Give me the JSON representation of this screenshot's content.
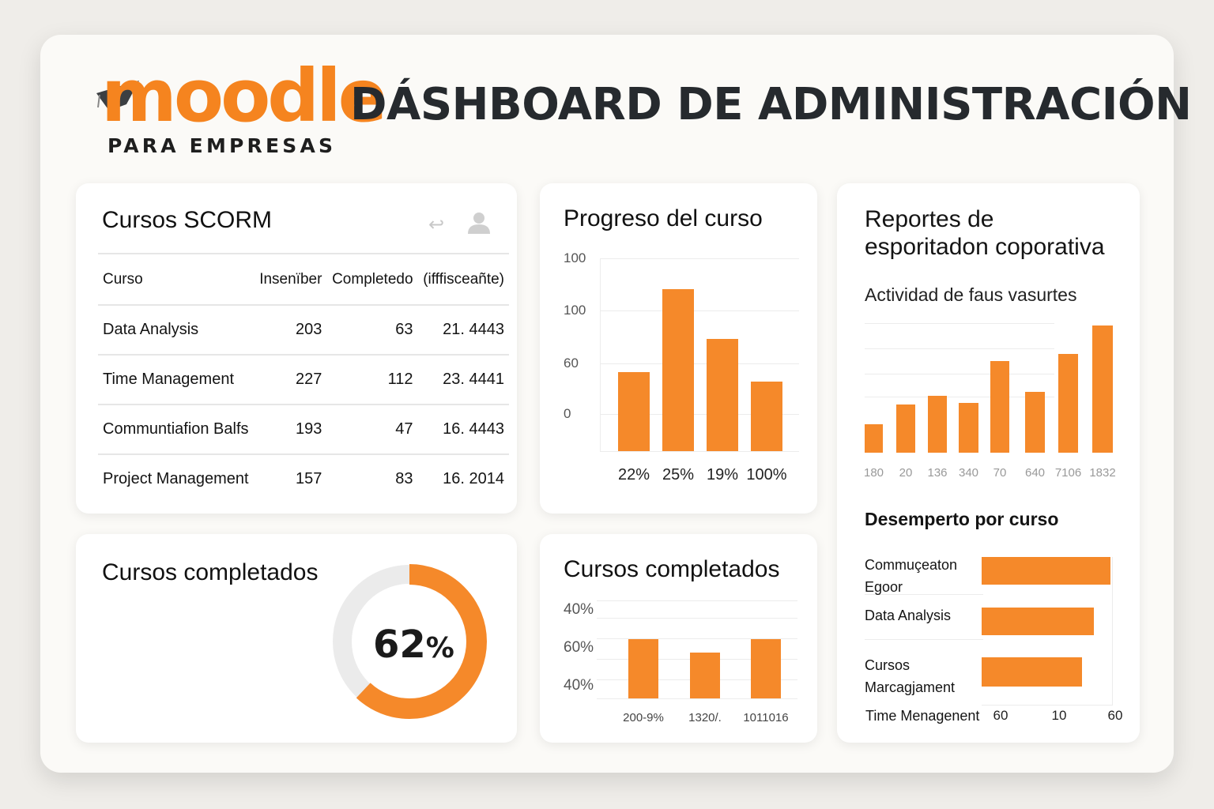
{
  "header": {
    "logo_text": "moodle",
    "logo_subtitle": "PARA EMPRESAS",
    "title": "DÁSHBOARD DE ADMINISTRACIÓN"
  },
  "colors": {
    "accent": "#f5892a",
    "track": "#ebebeb",
    "text": "#141414"
  },
  "scorm": {
    "title": "Cursos SCORM",
    "icons": [
      "back-arrow-icon",
      "user-icon"
    ],
    "columns": [
      "Curso",
      "Insenïber",
      "Completedo",
      "(ifffisceañte)"
    ],
    "rows": [
      [
        "Data Analysis",
        "203",
        "63",
        "21. 4443"
      ],
      [
        "Time Management",
        "227",
        "112",
        "23. 4441"
      ],
      [
        "Communtiafion Balfs",
        "193",
        "47",
        "16. 4443"
      ],
      [
        "Project Management",
        "157",
        "83",
        "16. 2014"
      ]
    ]
  },
  "completion": {
    "title": "Cursos completados",
    "percent": 62,
    "number": "62",
    "unit": "%"
  },
  "chart_data": [
    {
      "type": "bar",
      "title": "Progreso del curso",
      "yticks": [
        "100",
        "100",
        "60",
        "0"
      ],
      "categories": [
        "22%",
        "25%",
        "19%",
        "100%"
      ],
      "values": [
        41,
        84,
        58,
        36
      ]
    },
    {
      "type": "bar",
      "title": "Cursos completados",
      "yticks": [
        "40%",
        "60%",
        "40%"
      ],
      "categories": [
        "200-9%",
        "1320/.",
        "1011016"
      ],
      "values": [
        75,
        58,
        75
      ]
    },
    {
      "type": "bar",
      "title": "Actividad de faus vasurtes",
      "categories": [
        "180",
        "20",
        "136",
        "340",
        "70",
        "640",
        "7106",
        "1832"
      ],
      "values": [
        36,
        61,
        72,
        63,
        116,
        77,
        125,
        161
      ]
    },
    {
      "type": "bar",
      "orientation": "horizontal",
      "title": "Desemperto por curso",
      "categories": [
        "Commuçeaton Egoor",
        "Data Analysis",
        "Cursos Marcagjament"
      ],
      "values": [
        163,
        142,
        127
      ],
      "xticks": [
        "60",
        "10",
        "60"
      ]
    }
  ],
  "reports": {
    "title_line1": "Reportes de",
    "title_line2": "esporitadon coporativa",
    "extra_label": "Time Menagenent"
  }
}
